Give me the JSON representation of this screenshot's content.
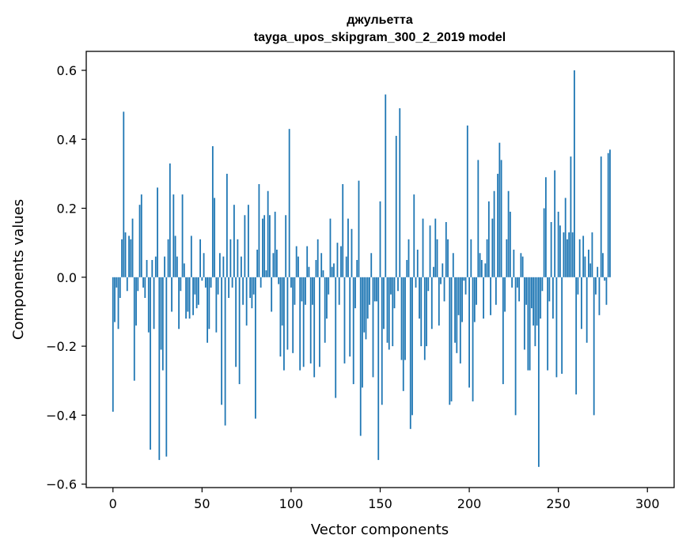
{
  "chart_data": {
    "type": "bar",
    "title": "джульетта",
    "subtitle": "tayga_upos_skipgram_300_2_2019 model",
    "xlabel": "Vector components",
    "ylabel": "Components values",
    "xlim": [
      -15,
      315
    ],
    "ylim": [
      -0.61,
      0.655
    ],
    "xticks": [
      0,
      50,
      100,
      150,
      200,
      250,
      300
    ],
    "xtick_labels": [
      "0",
      "50",
      "100",
      "150",
      "200",
      "250",
      "300"
    ],
    "yticks": [
      -0.6,
      -0.4,
      -0.2,
      0.0,
      0.2,
      0.4,
      0.6
    ],
    "ytick_labels": [
      "−0.6",
      "−0.4",
      "−0.2",
      "0.0",
      "0.2",
      "0.4",
      "0.6"
    ],
    "grid": false,
    "bar_color": "#1f77b4",
    "values": [
      -0.39,
      -0.13,
      -0.03,
      -0.15,
      -0.06,
      0.11,
      0.48,
      0.13,
      -0.04,
      0.12,
      0.11,
      0.17,
      -0.3,
      -0.14,
      -0.04,
      0.21,
      0.24,
      -0.03,
      -0.06,
      0.05,
      -0.16,
      -0.5,
      0.05,
      -0.15,
      0.06,
      0.26,
      -0.53,
      -0.21,
      -0.27,
      0.06,
      -0.52,
      0.11,
      0.33,
      -0.1,
      0.24,
      0.12,
      0.06,
      -0.15,
      -0.04,
      0.24,
      0.04,
      -0.12,
      -0.1,
      -0.12,
      0.12,
      -0.11,
      -0.05,
      -0.09,
      -0.08,
      0.11,
      -0.01,
      0.07,
      -0.03,
      -0.19,
      -0.15,
      -0.03,
      0.38,
      0.23,
      -0.16,
      -0.05,
      0.07,
      -0.37,
      0.06,
      -0.43,
      0.3,
      -0.06,
      0.11,
      -0.03,
      0.21,
      -0.26,
      0.11,
      -0.31,
      0.06,
      -0.08,
      0.18,
      -0.14,
      0.21,
      -0.06,
      -0.09,
      -0.05,
      -0.41,
      0.08,
      0.27,
      -0.03,
      0.17,
      0.18,
      0.02,
      0.25,
      0.18,
      -0.1,
      0.07,
      0.19,
      0.08,
      -0.02,
      -0.23,
      -0.14,
      -0.27,
      0.18,
      -0.21,
      0.43,
      -0.03,
      -0.22,
      -0.08,
      0.09,
      0.06,
      -0.27,
      -0.07,
      -0.26,
      -0.08,
      0.09,
      0.03,
      -0.25,
      -0.08,
      -0.29,
      0.05,
      0.11,
      -0.26,
      0.07,
      0.02,
      -0.19,
      -0.12,
      -0.05,
      0.17,
      0.03,
      0.04,
      -0.35,
      0.1,
      -0.08,
      0.09,
      0.27,
      -0.25,
      0.06,
      0.17,
      -0.23,
      0.14,
      -0.31,
      -0.09,
      0.05,
      0.28,
      -0.46,
      -0.32,
      -0.16,
      -0.18,
      -0.12,
      -0.08,
      0.07,
      -0.29,
      -0.07,
      -0.07,
      -0.53,
      0.22,
      -0.37,
      -0.15,
      0.53,
      -0.19,
      -0.21,
      -0.05,
      -0.2,
      -0.09,
      0.41,
      -0.04,
      0.49,
      -0.24,
      -0.33,
      -0.24,
      0.05,
      0.11,
      -0.44,
      -0.4,
      0.24,
      -0.03,
      0.08,
      -0.12,
      -0.2,
      0.17,
      -0.24,
      -0.2,
      -0.04,
      0.15,
      -0.15,
      0.03,
      0.17,
      0.11,
      -0.14,
      -0.02,
      0.04,
      -0.07,
      0.16,
      0.11,
      -0.37,
      -0.36,
      0.07,
      -0.19,
      -0.22,
      -0.11,
      -0.25,
      -0.13,
      -0.01,
      -0.05,
      0.44,
      -0.32,
      0.11,
      -0.36,
      -0.13,
      -0.08,
      0.34,
      0.07,
      0.05,
      -0.12,
      0.04,
      0.11,
      0.22,
      -0.11,
      0.17,
      0.25,
      -0.08,
      0.3,
      0.39,
      0.34,
      -0.31,
      -0.1,
      0.11,
      0.25,
      0.19,
      -0.03,
      0.08,
      -0.4,
      -0.03,
      -0.07,
      0.07,
      0.06,
      -0.21,
      -0.08,
      -0.27,
      -0.27,
      -0.09,
      -0.14,
      -0.2,
      -0.14,
      -0.55,
      -0.12,
      -0.04,
      0.2,
      0.29,
      -0.27,
      -0.07,
      0.16,
      -0.12,
      0.31,
      -0.29,
      0.19,
      0.15,
      -0.28,
      0.13,
      0.23,
      0.11,
      0.13,
      0.35,
      0.13,
      0.6,
      -0.34,
      -0.05,
      0.11,
      -0.15,
      0.12,
      0.06,
      -0.19,
      0.08,
      0.04,
      0.13,
      -0.4,
      -0.05,
      0.03,
      -0.11,
      0.35,
      0.07,
      -0.01,
      -0.08,
      0.36,
      0.37
    ]
  }
}
